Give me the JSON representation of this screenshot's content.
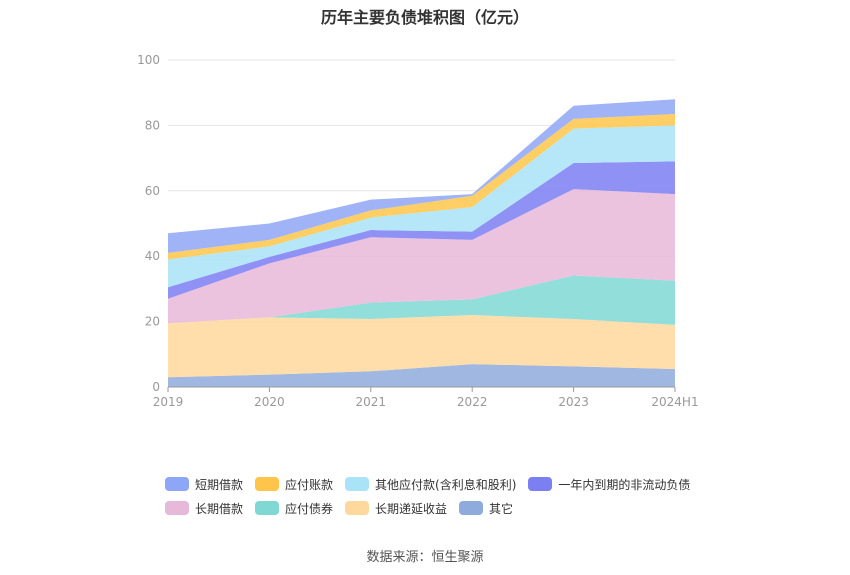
{
  "title": "历年主要负债堆积图（亿元）",
  "source": "数据来源：恒生聚源",
  "chart_data": {
    "type": "area",
    "stacked": true,
    "x": [
      "2019",
      "2020",
      "2021",
      "2022",
      "2023",
      "2024H1"
    ],
    "ylim": [
      0,
      100
    ],
    "yticks": [
      0,
      20,
      40,
      60,
      80,
      100
    ],
    "grid": true,
    "legend_position": "bottom",
    "series": [
      {
        "name": "其它",
        "color": "#8FAADC",
        "values": [
          3.0,
          3.8,
          4.8,
          7.0,
          6.3,
          5.5
        ]
      },
      {
        "name": "长期递延收益",
        "color": "#FFD89E",
        "values": [
          16.5,
          17.5,
          16.0,
          15.0,
          14.5,
          13.5
        ]
      },
      {
        "name": "应付债券",
        "color": "#7FD8D4",
        "values": [
          0.0,
          0.0,
          5.0,
          4.8,
          13.3,
          13.5
        ]
      },
      {
        "name": "长期借款",
        "color": "#E8B8D8",
        "values": [
          7.5,
          16.5,
          20.0,
          18.2,
          26.4,
          26.5
        ]
      },
      {
        "name": "一年内到期的非流动负债",
        "color": "#7B7FF2",
        "values": [
          3.5,
          2.0,
          2.2,
          2.5,
          8.0,
          10.0
        ]
      },
      {
        "name": "其他应付款(含利息和股利)",
        "color": "#A9E3F8",
        "values": [
          8.5,
          3.2,
          3.8,
          7.5,
          10.5,
          11.0
        ]
      },
      {
        "name": "应付账款",
        "color": "#FFC54A",
        "values": [
          2.0,
          2.0,
          2.2,
          3.5,
          3.0,
          3.5
        ]
      },
      {
        "name": "短期借款",
        "color": "#8EA6F5",
        "values": [
          6.0,
          5.0,
          3.3,
          0.5,
          4.0,
          4.5
        ]
      }
    ],
    "legend_rows": [
      [
        "短期借款",
        "应付账款",
        "其他应付款(含利息和股利)",
        "一年内到期的非流动负债"
      ],
      [
        "长期借款",
        "应付债券",
        "长期递延收益",
        "其它"
      ]
    ]
  }
}
